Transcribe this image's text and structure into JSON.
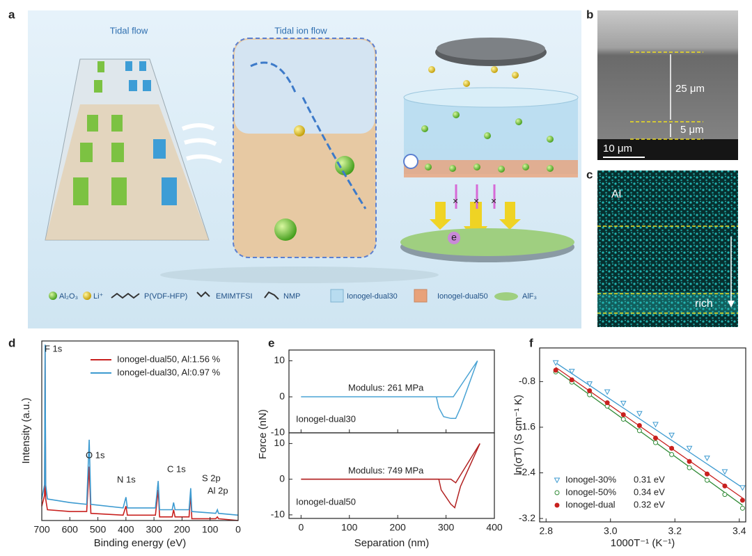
{
  "panel_labels": [
    "a",
    "b",
    "c",
    "d",
    "e",
    "f"
  ],
  "schematic": {
    "left_title": "Tidal flow",
    "center_title": "Tidal ion flow",
    "electron": "e",
    "legend": [
      "Al₂O₃",
      "Li⁺",
      "P(VDF-HFP)",
      "EMIMTFSI",
      "NMP",
      "Ionogel-dual30",
      "Ionogel-dual50",
      "AlF₃"
    ]
  },
  "sem": {
    "thickness_top": "25 μm",
    "thickness_bottom": "5 μm",
    "scale_bar": "10 μm"
  },
  "eds": {
    "element": "Al",
    "gradient_label": "rich"
  },
  "chart_data": [
    {
      "type": "line",
      "xlabel": "Binding energy (eV)",
      "ylabel": "Intensity (a.u.)",
      "xlim": [
        700,
        0
      ],
      "xticks": [
        700,
        600,
        500,
        400,
        300,
        200,
        100,
        0
      ],
      "ylim": [
        0,
        100
      ],
      "x": [
        700,
        690,
        688,
        686,
        680,
        600,
        540,
        531,
        525,
        410,
        400,
        395,
        295,
        285,
        280,
        235,
        230,
        225,
        175,
        169,
        165,
        80,
        74,
        70,
        0
      ],
      "series": [
        {
          "name": "Ionogel-dual50, Al:1.56 %",
          "color": "#c8201e",
          "values": [
            8,
            14,
            95,
            12,
            6,
            5,
            5,
            30,
            4,
            3,
            8,
            3,
            3,
            17,
            2,
            2,
            6,
            2,
            2,
            15,
            1,
            1,
            2,
            1,
            0
          ]
        },
        {
          "name": "Ionogel-dual30, Al:0.97 %",
          "color": "#3c9ad0",
          "values": [
            12,
            20,
            98,
            20,
            12,
            10,
            9,
            45,
            9,
            7,
            13,
            7,
            7,
            22,
            6,
            6,
            10,
            6,
            6,
            18,
            5,
            4,
            6,
            4,
            3
          ]
        }
      ],
      "annotations": [
        "F 1s",
        "O 1s",
        "N 1s",
        "C 1s",
        "S 2p",
        "Al 2p"
      ]
    },
    {
      "type": "line-stack",
      "xlabel": "Separation (nm)",
      "ylabel": "Force (nN)",
      "xlim": [
        -25,
        400
      ],
      "xticks": [
        0,
        100,
        200,
        300,
        400
      ],
      "panels": [
        {
          "ylim": [
            -10,
            13
          ],
          "yticks": [
            -10,
            0,
            10
          ],
          "annotations": [
            "Modulus: 261 MPa",
            "Ionogel-dual30"
          ],
          "series": [
            {
              "color": "#4aa3d4",
              "x": [
                0,
                315,
                365
              ],
              "values": [
                0,
                0,
                10
              ]
            },
            {
              "color": "#4aa3d4",
              "x": [
                365,
                330,
                320,
                310,
                295,
                285,
                280,
                0
              ],
              "values": [
                10,
                -3,
                -6,
                -6,
                -5.5,
                -3,
                0,
                0
              ]
            }
          ]
        },
        {
          "ylim": [
            -11,
            13
          ],
          "yticks": [
            -10,
            0,
            10
          ],
          "annotations": [
            "Modulus: 749 MPa",
            "Ionogel-dual50"
          ],
          "series": [
            {
              "color": "#b22222",
              "x": [
                0,
                310,
                320,
                370
              ],
              "values": [
                0,
                0,
                -1,
                10
              ]
            },
            {
              "color": "#b22222",
              "x": [
                370,
                330,
                318,
                310,
                300,
                290,
                285,
                0
              ],
              "values": [
                10,
                -2,
                -8,
                -7,
                -5,
                -3,
                0,
                0
              ]
            }
          ]
        }
      ]
    },
    {
      "type": "scatter-fit",
      "xlabel": "1000T⁻¹ (K⁻¹)",
      "ylabel": "ln(σT) (S cm⁻¹ K)",
      "xlim": [
        2.78,
        3.42
      ],
      "xticks": [
        2.8,
        {
          "value": 3,
          "label": "3.0"
        },
        3.2,
        3.4
      ],
      "ylim": [
        -3.26,
        -0.21
      ],
      "yticks": [
        -0.8,
        -1.6,
        -2.4,
        -3.2
      ],
      "x": [
        2.83,
        2.88,
        2.935,
        2.99,
        3.04,
        3.09,
        3.14,
        3.19,
        3.245,
        3.3,
        3.355,
        3.41
      ],
      "fit_x": [
        2.83,
        3.41
      ],
      "series": [
        {
          "name": "Ionogel-30%",
          "energy": "0.31 eV",
          "color": "#3c9ad0",
          "marker": "triangle-open",
          "values": [
            -0.47,
            -0.62,
            -0.84,
            -0.98,
            -1.18,
            -1.36,
            -1.55,
            -1.74,
            -1.97,
            -2.14,
            -2.38,
            -2.66
          ],
          "fit": [
            -0.47,
            -2.66
          ]
        },
        {
          "name": "Ionogel-50%",
          "energy": "0.34 eV",
          "color": "#2f8a35",
          "marker": "circle-open",
          "values": [
            -0.63,
            -0.81,
            -1.03,
            -1.23,
            -1.46,
            -1.66,
            -1.87,
            -2.08,
            -2.31,
            -2.53,
            -2.78,
            -3.02
          ],
          "fit": [
            -0.6,
            -2.97
          ]
        },
        {
          "name": "Ionogel-dual",
          "energy": "0.32 eV",
          "color": "#c8201e",
          "marker": "circle",
          "values": [
            -0.6,
            -0.77,
            -0.96,
            -1.17,
            -1.38,
            -1.57,
            -1.79,
            -1.97,
            -2.2,
            -2.42,
            -2.63,
            -2.88
          ],
          "fit": [
            -0.55,
            -2.84
          ]
        }
      ]
    }
  ]
}
